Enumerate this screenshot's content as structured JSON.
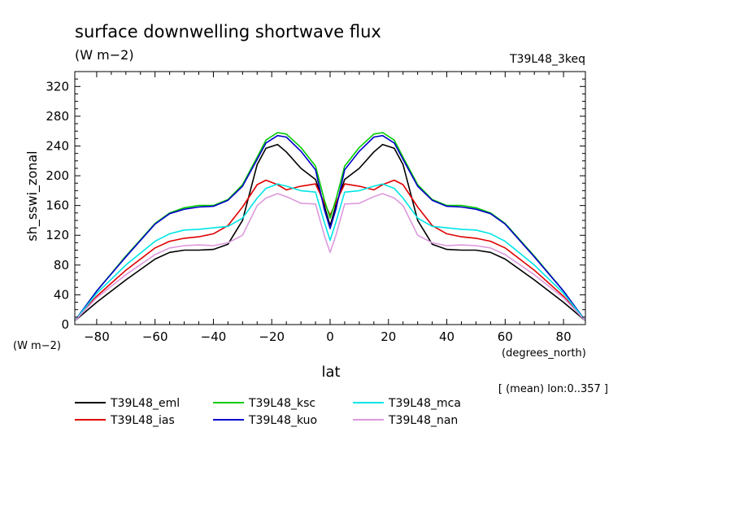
{
  "chart_data": {
    "type": "line",
    "title": "surface downwelling shortwave flux",
    "units": "(W m−2)",
    "run_label": "T39L48_3keq",
    "ylabel": "sh_sswi_zonal",
    "ylabel_units": "(W m−2)",
    "xlabel": "lat",
    "xlabel_units": "(degrees_north)",
    "footnote": "[ (mean) lon:0..357 ]",
    "xlim": [
      -87.5,
      87.5
    ],
    "ylim": [
      0,
      340
    ],
    "x_ticks": [
      -80,
      -60,
      -40,
      -20,
      0,
      20,
      40,
      60,
      80
    ],
    "y_ticks": [
      0,
      40,
      80,
      120,
      160,
      200,
      240,
      280,
      320
    ],
    "x_tick_labels": [
      "−80",
      "−60",
      "−40",
      "−20",
      "0",
      "20",
      "40",
      "60",
      "80"
    ],
    "y_tick_labels": [
      "0",
      "40",
      "80",
      "120",
      "160",
      "200",
      "240",
      "280",
      "320"
    ],
    "grid": false,
    "legend_position": "bottom",
    "x": [
      -87.5,
      -80,
      -70,
      -60,
      -55,
      -50,
      -45,
      -40,
      -35,
      -30,
      -25,
      -22,
      -18,
      -15,
      -10,
      -5,
      -2,
      0,
      2,
      5,
      10,
      15,
      18,
      22,
      25,
      30,
      35,
      40,
      45,
      50,
      55,
      60,
      70,
      80,
      87.5
    ],
    "series": [
      {
        "name": "T39L48_eml",
        "color": "#000000",
        "values": [
          5,
          30,
          60,
          88,
          97,
          100,
          100,
          101,
          108,
          140,
          215,
          237,
          242,
          232,
          210,
          195,
          160,
          133,
          160,
          195,
          210,
          232,
          242,
          237,
          215,
          140,
          108,
          101,
          100,
          100,
          97,
          88,
          60,
          30,
          5
        ]
      },
      {
        "name": "T39L48_ias",
        "color": "#e00000",
        "values": [
          5,
          38,
          73,
          103,
          112,
          116,
          118,
          122,
          133,
          158,
          188,
          194,
          188,
          181,
          186,
          189,
          164,
          147,
          164,
          189,
          186,
          181,
          188,
          194,
          188,
          158,
          133,
          122,
          118,
          116,
          112,
          103,
          73,
          38,
          5
        ]
      },
      {
        "name": "T39L48_ksc",
        "color": "#00cc00",
        "values": [
          5,
          45,
          92,
          136,
          150,
          157,
          160,
          160,
          168,
          188,
          225,
          248,
          258,
          256,
          238,
          213,
          168,
          143,
          168,
          213,
          238,
          256,
          258,
          248,
          225,
          188,
          168,
          160,
          160,
          157,
          150,
          136,
          92,
          45,
          5
        ]
      },
      {
        "name": "T39L48_kuo",
        "color": "#0000cc",
        "values": [
          5,
          45,
          91,
          135,
          149,
          155,
          158,
          159,
          167,
          186,
          222,
          244,
          254,
          252,
          233,
          208,
          155,
          129,
          155,
          208,
          233,
          252,
          254,
          244,
          222,
          186,
          167,
          159,
          158,
          155,
          149,
          135,
          91,
          45,
          5
        ]
      },
      {
        "name": "T39L48_mca",
        "color": "#00e5e5",
        "values": [
          5,
          42,
          80,
          112,
          122,
          127,
          128,
          130,
          132,
          143,
          170,
          183,
          189,
          186,
          180,
          178,
          138,
          113,
          138,
          178,
          180,
          186,
          189,
          183,
          170,
          143,
          132,
          130,
          128,
          127,
          122,
          112,
          80,
          42,
          5
        ]
      },
      {
        "name": "T39L48_nan",
        "color": "#dd99dd",
        "values": [
          5,
          36,
          67,
          94,
          103,
          106,
          107,
          106,
          110,
          120,
          160,
          170,
          176,
          172,
          163,
          162,
          120,
          97,
          120,
          162,
          163,
          172,
          176,
          170,
          160,
          120,
          110,
          106,
          107,
          106,
          103,
          94,
          67,
          36,
          5
        ]
      }
    ]
  }
}
